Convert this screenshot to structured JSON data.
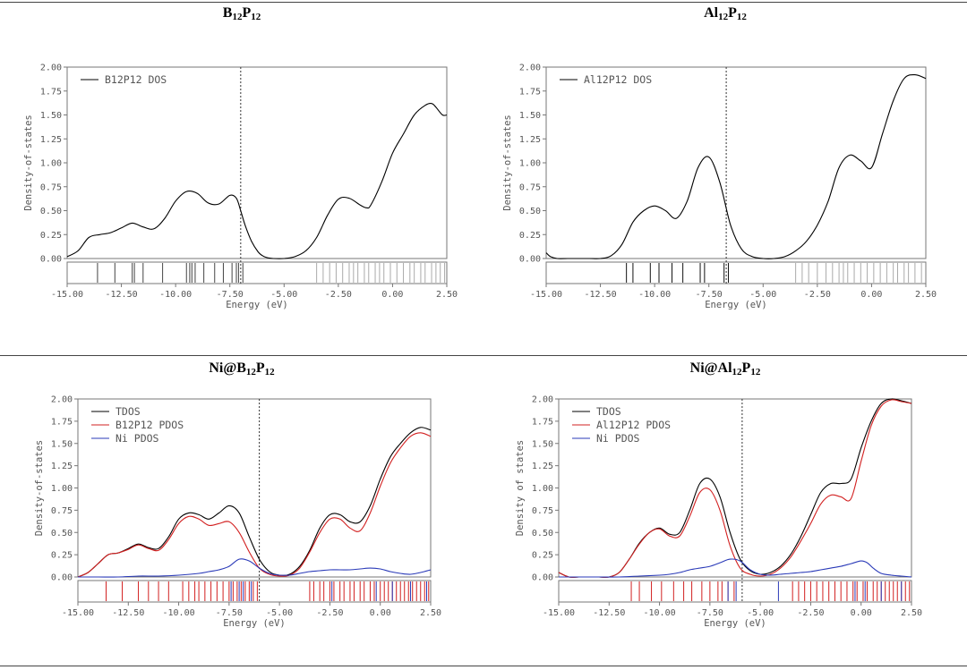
{
  "chart_data": [
    {
      "type": "line",
      "title_main": "B",
      "title_s1": "12",
      "title_mid": "P",
      "title_s2": "12",
      "xlabel": "Energy (eV)",
      "ylabel": "Density-of-states",
      "xlim": [
        -15.0,
        2.5
      ],
      "ylim": [
        0.0,
        2.0
      ],
      "xticks": [
        "-15.00",
        "-12.50",
        "-10.00",
        "-7.50",
        "-5.00",
        "-2.50",
        "0.00",
        "2.50"
      ],
      "yticks": [
        "0.00",
        "0.25",
        "0.50",
        "0.75",
        "1.00",
        "1.25",
        "1.50",
        "1.75",
        "2.00"
      ],
      "fermi_level": -7.0,
      "legend_placement": "top-left",
      "series": [
        {
          "name": "B12P12 DOS",
          "color": "#000000",
          "x": [
            -15.0,
            -14.5,
            -14.0,
            -13.5,
            -13.0,
            -12.5,
            -12.0,
            -11.5,
            -11.0,
            -10.5,
            -10.0,
            -9.5,
            -9.0,
            -8.5,
            -8.0,
            -7.5,
            -7.2,
            -7.0,
            -6.8,
            -6.5,
            -6.2,
            -6.0,
            -5.8,
            -5.5,
            -5.0,
            -4.5,
            -4.0,
            -3.5,
            -3.0,
            -2.5,
            -2.0,
            -1.5,
            -1.2,
            -1.0,
            -0.5,
            0.0,
            0.5,
            1.0,
            1.5,
            1.8,
            2.0,
            2.3,
            2.5
          ],
          "y": [
            0.02,
            0.08,
            0.22,
            0.25,
            0.27,
            0.32,
            0.37,
            0.33,
            0.31,
            0.42,
            0.6,
            0.7,
            0.68,
            0.58,
            0.57,
            0.66,
            0.63,
            0.5,
            0.35,
            0.18,
            0.07,
            0.03,
            0.01,
            0.0,
            0.0,
            0.02,
            0.08,
            0.22,
            0.45,
            0.62,
            0.63,
            0.56,
            0.53,
            0.56,
            0.8,
            1.1,
            1.3,
            1.5,
            1.6,
            1.62,
            1.58,
            1.5,
            1.5
          ]
        }
      ],
      "levels": [
        {
          "color": "#444444",
          "x": [
            -13.6,
            -12.8,
            -12.0,
            -11.9,
            -11.5,
            -10.6,
            -9.5,
            -9.35,
            -9.25,
            -9.1,
            -8.7,
            -8.2,
            -7.8,
            -7.4,
            -7.2,
            -7.1,
            -6.9
          ]
        },
        {
          "color": "#aaaaaa",
          "x": [
            -3.5,
            -3.2,
            -2.9,
            -2.6,
            -2.3,
            -2.0,
            -1.8,
            -1.6,
            -1.3,
            -1.1,
            -0.8,
            -0.6,
            -0.4,
            -0.1,
            0.2,
            0.5,
            0.8,
            1.0,
            1.3,
            1.5,
            1.8,
            2.0,
            2.2,
            2.4
          ]
        }
      ]
    },
    {
      "type": "line",
      "title_main": "Al",
      "title_s1": "12",
      "title_mid": "P",
      "title_s2": "12",
      "xlabel": "Energy (eV)",
      "ylabel": "Density-of-states",
      "xlim": [
        -15.0,
        2.5
      ],
      "ylim": [
        0.0,
        2.0
      ],
      "xticks": [
        "-15.00",
        "-12.50",
        "-10.00",
        "-7.50",
        "-5.00",
        "-2.50",
        "0.00",
        "2.50"
      ],
      "yticks": [
        "0.00",
        "0.25",
        "0.50",
        "0.75",
        "1.00",
        "1.25",
        "1.50",
        "1.75",
        "2.00"
      ],
      "fermi_level": -6.7,
      "legend_placement": "top-left",
      "series": [
        {
          "name": "Al12P12 DOS",
          "color": "#000000",
          "x": [
            -15.0,
            -14.8,
            -14.5,
            -14.0,
            -13.5,
            -13.0,
            -12.5,
            -12.0,
            -11.5,
            -11.0,
            -10.5,
            -10.0,
            -9.5,
            -9.0,
            -8.5,
            -8.0,
            -7.5,
            -7.0,
            -6.5,
            -6.0,
            -5.5,
            -5.0,
            -4.5,
            -4.0,
            -3.5,
            -3.0,
            -2.5,
            -2.0,
            -1.5,
            -1.0,
            -0.5,
            0.0,
            0.5,
            1.0,
            1.5,
            2.0,
            2.5
          ],
          "y": [
            0.06,
            0.02,
            0.0,
            0.0,
            0.0,
            0.0,
            0.0,
            0.03,
            0.15,
            0.38,
            0.5,
            0.55,
            0.5,
            0.42,
            0.6,
            0.95,
            1.06,
            0.8,
            0.35,
            0.1,
            0.02,
            0.0,
            0.0,
            0.02,
            0.08,
            0.18,
            0.35,
            0.6,
            0.95,
            1.08,
            1.02,
            0.95,
            1.3,
            1.65,
            1.88,
            1.92,
            1.88
          ]
        }
      ],
      "levels": [
        {
          "color": "#111111",
          "x": [
            -11.3,
            -11.0,
            -10.2,
            -9.8,
            -9.2,
            -8.7,
            -7.9,
            -7.7,
            -6.8,
            -6.6
          ]
        },
        {
          "color": "#aaaaaa",
          "x": [
            -3.5,
            -3.2,
            -2.9,
            -2.5,
            -2.1,
            -1.8,
            -1.5,
            -1.3,
            -1.1,
            -0.8,
            -0.5,
            -0.2,
            0.1,
            0.4,
            0.7,
            1.0,
            1.2,
            1.5,
            1.7,
            2.0,
            2.3
          ]
        }
      ]
    },
    {
      "type": "line",
      "title_main": "Ni@B",
      "title_s1": "12",
      "title_mid": "P",
      "title_s2": "12",
      "xlabel": "Energy (eV)",
      "ylabel": "Density-of-states",
      "xlim": [
        -15.0,
        2.5
      ],
      "ylim": [
        0.0,
        2.0
      ],
      "xticks": [
        "-15.00",
        "-12.50",
        "-10.00",
        "-7.50",
        "-5.00",
        "-2.50",
        "0.00",
        "2.50"
      ],
      "yticks": [
        "0.00",
        "0.25",
        "0.50",
        "0.75",
        "1.00",
        "1.25",
        "1.50",
        "1.75",
        "2.00"
      ],
      "fermi_level": -6.0,
      "legend_placement": "top-left",
      "series": [
        {
          "name": "TDOS",
          "color": "#000000",
          "x": [
            -15.0,
            -14.5,
            -14.0,
            -13.5,
            -13.0,
            -12.5,
            -12.0,
            -11.5,
            -11.0,
            -10.5,
            -10.0,
            -9.5,
            -9.0,
            -8.5,
            -8.0,
            -7.5,
            -7.0,
            -6.5,
            -6.0,
            -5.5,
            -5.0,
            -4.5,
            -4.0,
            -3.5,
            -3.0,
            -2.5,
            -2.0,
            -1.5,
            -1.0,
            -0.5,
            0.0,
            0.5,
            1.0,
            1.5,
            2.0,
            2.5
          ],
          "y": [
            0.0,
            0.05,
            0.15,
            0.25,
            0.27,
            0.32,
            0.37,
            0.33,
            0.32,
            0.45,
            0.65,
            0.72,
            0.7,
            0.65,
            0.72,
            0.8,
            0.72,
            0.45,
            0.2,
            0.06,
            0.02,
            0.03,
            0.12,
            0.3,
            0.55,
            0.7,
            0.7,
            0.62,
            0.62,
            0.8,
            1.1,
            1.35,
            1.5,
            1.62,
            1.68,
            1.65
          ]
        },
        {
          "name": "B12P12 PDOS",
          "color": "#d22020",
          "x": [
            -15.0,
            -14.5,
            -14.0,
            -13.5,
            -13.0,
            -12.5,
            -12.0,
            -11.5,
            -11.0,
            -10.5,
            -10.0,
            -9.5,
            -9.0,
            -8.5,
            -8.0,
            -7.5,
            -7.0,
            -6.5,
            -6.0,
            -5.5,
            -5.0,
            -4.5,
            -4.0,
            -3.5,
            -3.0,
            -2.5,
            -2.0,
            -1.5,
            -1.0,
            -0.5,
            0.0,
            0.5,
            1.0,
            1.5,
            2.0,
            2.5
          ],
          "y": [
            0.0,
            0.05,
            0.15,
            0.25,
            0.27,
            0.31,
            0.36,
            0.32,
            0.3,
            0.42,
            0.6,
            0.68,
            0.65,
            0.58,
            0.6,
            0.62,
            0.5,
            0.28,
            0.1,
            0.03,
            0.01,
            0.02,
            0.1,
            0.28,
            0.5,
            0.65,
            0.65,
            0.55,
            0.52,
            0.72,
            1.02,
            1.28,
            1.45,
            1.58,
            1.62,
            1.58
          ]
        },
        {
          "name": "Ni PDOS",
          "color": "#2a3ab8",
          "x": [
            -15.0,
            -14.0,
            -13.0,
            -12.0,
            -11.0,
            -10.0,
            -9.0,
            -8.5,
            -8.0,
            -7.5,
            -7.0,
            -6.5,
            -6.0,
            -5.5,
            -5.0,
            -4.5,
            -4.0,
            -3.5,
            -3.0,
            -2.5,
            -2.0,
            -1.5,
            -1.0,
            -0.5,
            0.0,
            0.5,
            1.0,
            1.5,
            2.0,
            2.5
          ],
          "y": [
            0.0,
            0.0,
            0.0,
            0.01,
            0.01,
            0.02,
            0.04,
            0.06,
            0.08,
            0.12,
            0.2,
            0.18,
            0.1,
            0.04,
            0.02,
            0.02,
            0.04,
            0.06,
            0.07,
            0.08,
            0.08,
            0.08,
            0.09,
            0.1,
            0.09,
            0.06,
            0.04,
            0.03,
            0.05,
            0.08
          ]
        }
      ],
      "levels": [
        {
          "color": "#d22020",
          "x": [
            -13.6,
            -12.8,
            -12.0,
            -11.5,
            -11.0,
            -10.5,
            -9.8,
            -9.5,
            -9.2,
            -9.0,
            -8.7,
            -8.4,
            -8.1,
            -7.8,
            -7.5,
            -7.3,
            -7.1,
            -6.9,
            -6.7,
            -6.5,
            -6.3,
            -6.1,
            -3.5,
            -3.3,
            -3.0,
            -2.8,
            -2.5,
            -2.3,
            -2.0,
            -1.8,
            -1.5,
            -1.3,
            -1.0,
            -0.8,
            -0.5,
            -0.3,
            0.0,
            0.2,
            0.4,
            0.6,
            0.8,
            1.0,
            1.2,
            1.4,
            1.6,
            1.8,
            2.0,
            2.2,
            2.4
          ]
        },
        {
          "color": "#2a3ab8",
          "x": [
            -7.4,
            -7.0,
            -6.8,
            -6.4,
            -2.4,
            -0.2,
            0.6,
            1.5,
            2.3
          ]
        }
      ]
    },
    {
      "type": "line",
      "title_main": "Ni@Al",
      "title_s1": "12",
      "title_mid": "P",
      "title_s2": "12",
      "xlabel": "Energy (eV)",
      "ylabel": "Density of states",
      "xlim": [
        -15.0,
        2.5
      ],
      "ylim": [
        0.0,
        2.0
      ],
      "xticks": [
        "-15.00",
        "-12.50",
        "-10.00",
        "-7.50",
        "-5.00",
        "-2.50",
        "0.00",
        "2.50"
      ],
      "yticks": [
        "0.00",
        "0.25",
        "0.50",
        "0.75",
        "1.00",
        "1.25",
        "1.50",
        "1.75",
        "2.00"
      ],
      "fermi_level": -5.9,
      "legend_placement": "top-left",
      "series": [
        {
          "name": "TDOS",
          "color": "#000000",
          "x": [
            -15.0,
            -14.5,
            -14.0,
            -13.5,
            -13.0,
            -12.5,
            -12.0,
            -11.5,
            -11.0,
            -10.5,
            -10.0,
            -9.5,
            -9.0,
            -8.5,
            -8.0,
            -7.5,
            -7.0,
            -6.5,
            -6.0,
            -5.5,
            -5.0,
            -4.5,
            -4.0,
            -3.5,
            -3.0,
            -2.5,
            -2.0,
            -1.5,
            -1.0,
            -0.5,
            0.0,
            0.5,
            1.0,
            1.5,
            2.0,
            2.5
          ],
          "y": [
            0.05,
            0.0,
            0.0,
            0.0,
            0.0,
            0.0,
            0.05,
            0.2,
            0.38,
            0.5,
            0.55,
            0.48,
            0.5,
            0.75,
            1.05,
            1.1,
            0.9,
            0.5,
            0.2,
            0.07,
            0.03,
            0.05,
            0.12,
            0.25,
            0.45,
            0.7,
            0.95,
            1.05,
            1.05,
            1.1,
            1.45,
            1.75,
            1.95,
            2.0,
            1.98,
            1.95
          ]
        },
        {
          "name": "Al12P12 PDOS",
          "color": "#d22020",
          "x": [
            -15.0,
            -14.5,
            -14.0,
            -13.5,
            -13.0,
            -12.5,
            -12.0,
            -11.5,
            -11.0,
            -10.5,
            -10.0,
            -9.5,
            -9.0,
            -8.5,
            -8.0,
            -7.5,
            -7.0,
            -6.5,
            -6.0,
            -5.5,
            -5.0,
            -4.5,
            -4.0,
            -3.5,
            -3.0,
            -2.5,
            -2.0,
            -1.5,
            -1.0,
            -0.5,
            0.0,
            0.5,
            1.0,
            1.5,
            2.0,
            2.5
          ],
          "y": [
            0.05,
            0.0,
            0.0,
            0.0,
            0.0,
            0.0,
            0.05,
            0.2,
            0.37,
            0.5,
            0.54,
            0.46,
            0.46,
            0.68,
            0.95,
            0.98,
            0.75,
            0.35,
            0.1,
            0.03,
            0.01,
            0.03,
            0.1,
            0.22,
            0.4,
            0.6,
            0.82,
            0.92,
            0.9,
            0.88,
            1.3,
            1.7,
            1.92,
            1.99,
            1.97,
            1.95
          ]
        },
        {
          "name": "Ni PDOS",
          "color": "#2a3ab8",
          "x": [
            -15.0,
            -13.0,
            -12.0,
            -11.0,
            -10.0,
            -9.5,
            -9.0,
            -8.5,
            -8.0,
            -7.5,
            -7.0,
            -6.5,
            -6.0,
            -5.5,
            -5.0,
            -4.5,
            -4.0,
            -3.5,
            -3.0,
            -2.5,
            -2.0,
            -1.5,
            -1.0,
            -0.5,
            0.0,
            0.3,
            0.6,
            1.0,
            1.5,
            2.0,
            2.5
          ],
          "y": [
            0.0,
            0.0,
            0.0,
            0.01,
            0.02,
            0.03,
            0.05,
            0.08,
            0.1,
            0.12,
            0.16,
            0.2,
            0.18,
            0.08,
            0.03,
            0.02,
            0.03,
            0.04,
            0.05,
            0.06,
            0.08,
            0.1,
            0.12,
            0.15,
            0.18,
            0.16,
            0.1,
            0.04,
            0.02,
            0.01,
            0.0
          ]
        }
      ],
      "levels": [
        {
          "color": "#d22020",
          "x": [
            -11.4,
            -11.0,
            -10.4,
            -9.9,
            -9.3,
            -8.8,
            -8.4,
            -7.9,
            -7.5,
            -7.1,
            -6.9,
            -6.6,
            -6.3,
            -3.4,
            -3.1,
            -2.8,
            -2.5,
            -2.2,
            -1.9,
            -1.6,
            -1.3,
            -1.0,
            -0.7,
            -0.4,
            -0.2,
            0.1,
            0.3,
            0.6,
            0.8,
            1.0,
            1.2,
            1.4,
            1.6,
            1.8,
            2.0,
            2.2,
            2.4
          ]
        },
        {
          "color": "#2a3ab8",
          "x": [
            -6.6,
            -6.2,
            -4.1,
            -0.3,
            0.2,
            1.0,
            2.0
          ]
        }
      ]
    }
  ]
}
